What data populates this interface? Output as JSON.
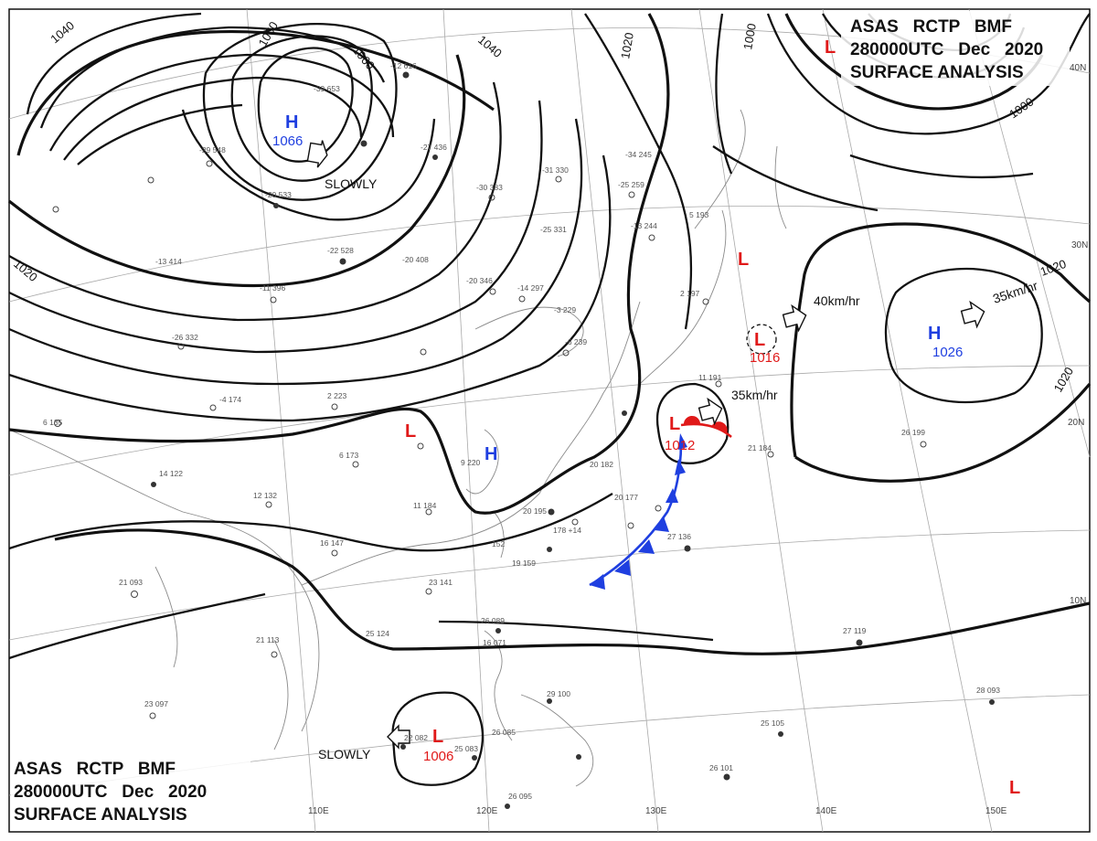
{
  "header": {
    "top_right": [
      "ASAS   RCTP   BMF",
      "280000UTC   Dec   2020",
      "SURFACE ANALYSIS"
    ],
    "bottom_left": [
      "ASAS   RCTP   BMF",
      "280000UTC   Dec   2020",
      "SURFACE ANALYSIS"
    ]
  },
  "colors": {
    "high": "#1f3fe0",
    "low": "#e01919",
    "cold_front": "#1f3fe0",
    "warm_front": "#e01919",
    "isobar": "#111111"
  },
  "pressure_systems": [
    {
      "type": "H",
      "value": "1066",
      "motion": "SLOWLY"
    },
    {
      "type": "H",
      "value": ""
    },
    {
      "type": "L",
      "value": ""
    },
    {
      "type": "L",
      "value": "1012",
      "motion": "35km/hr"
    },
    {
      "type": "L",
      "value": "1016",
      "motion": "40km/hr"
    },
    {
      "type": "L",
      "value": ""
    },
    {
      "type": "H",
      "value": "1026",
      "motion": "35km/hr"
    },
    {
      "type": "L",
      "value": "1006",
      "motion": "SLOWLY"
    },
    {
      "type": "L",
      "value": ""
    },
    {
      "type": "L",
      "value": ""
    }
  ],
  "isobar_labels": [
    "1040",
    "1060",
    "1060",
    "1040",
    "1020",
    "1000",
    "1000",
    "1020",
    "1020",
    "1020"
  ],
  "grid": {
    "longitudes": [
      "110E",
      "120E",
      "130E",
      "140E",
      "150E"
    ],
    "latitudes": [
      "40N",
      "30N",
      "20N",
      "10N"
    ]
  },
  "fronts": {
    "cold": "blue triangles",
    "warm": "red semicircles"
  },
  "station_obs": [
    "-39  653",
    "-29  548",
    "-20  533",
    "-22  528",
    "-11  396",
    "-13  414",
    "-26  332",
    "-4  174",
    "2  223",
    "6  173",
    "9  220",
    "11  184",
    "16  147",
    "21  093",
    "21  113",
    "25  124",
    "23  141",
    "12  132",
    "20  195",
    "20  182",
    "20  177",
    "27  136",
    "26  199",
    "21  184",
    "-20  346",
    "-14  297",
    "-3  229",
    "-6  239",
    "-13  244",
    "-25  331",
    "-31  330",
    "-25  259",
    "-34  245",
    "-27  436",
    "-12  616",
    "-30  383",
    "-20  408",
    "6  135",
    "14  122",
    "26  089",
    "16  071",
    "26  085",
    "29  100",
    "25  083",
    "26  095",
    "26  101",
    "25  105",
    "28  093",
    "27  119",
    "22  082",
    "23  097",
    "5  193",
    "2  197",
    "11  191",
    "19  159",
    "178  +14",
    "152"
  ]
}
